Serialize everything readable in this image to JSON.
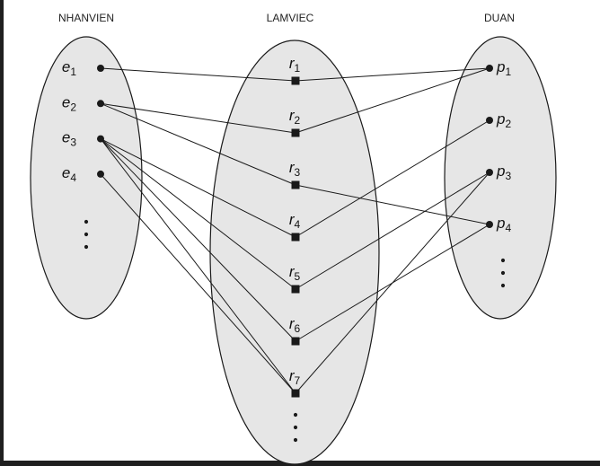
{
  "diagram": {
    "sets": [
      {
        "key": "e",
        "title": "NHANVIEN",
        "elements": [
          "e1",
          "e2",
          "e3",
          "e4"
        ]
      },
      {
        "key": "r",
        "title": "LAMVIEC",
        "elements": [
          "r1",
          "r2",
          "r3",
          "r4",
          "r5",
          "r6",
          "r7"
        ]
      },
      {
        "key": "p",
        "title": "DUAN",
        "elements": [
          "p1",
          "p2",
          "p3",
          "p4"
        ]
      }
    ],
    "relationships": [
      {
        "r": "r1",
        "e": "e1",
        "p": "p1"
      },
      {
        "r": "r2",
        "e": "e2",
        "p": "p1"
      },
      {
        "r": "r3",
        "e": "e2",
        "p": "p4"
      },
      {
        "r": "r4",
        "e": "e3",
        "p": "p2"
      },
      {
        "r": "r5",
        "e": "e3",
        "p": "p3"
      },
      {
        "r": "r6",
        "e": "e3",
        "p": "p4"
      },
      {
        "r": "r7",
        "e": "e4",
        "p": "p3"
      }
    ],
    "extra_links": [
      {
        "e": "e3",
        "r": "r7"
      }
    ],
    "ellipsis": "⋮"
  },
  "colors": {
    "set_fill": "#e6e6e6",
    "stroke": "#1a1a1a",
    "background": "#ffffff",
    "outer": "#1f1f1f"
  }
}
